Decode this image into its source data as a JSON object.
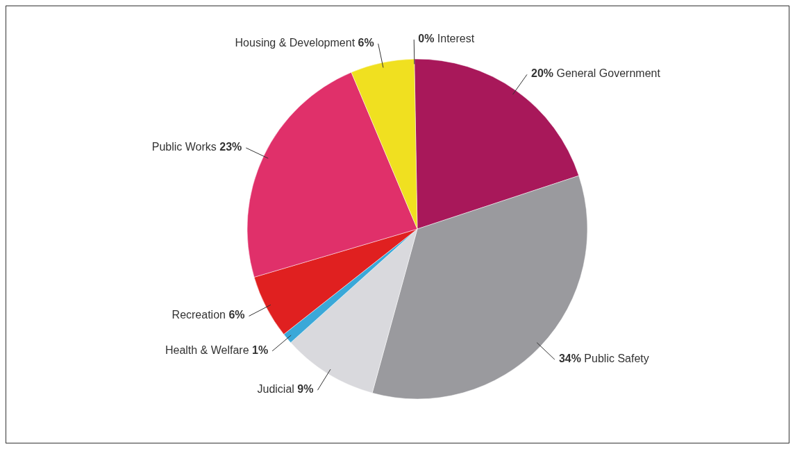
{
  "chart_data": {
    "type": "pie",
    "categories": [
      "General Government",
      "Public Safety",
      "Judicial",
      "Health & Welfare",
      "Recreation",
      "Public Works",
      "Housing & Development",
      "Interest"
    ],
    "values": [
      20,
      34,
      9,
      1,
      6,
      23,
      6,
      0
    ],
    "value_labels": [
      "20%",
      "34%",
      "9%",
      "1%",
      "6%",
      "23%",
      "6%",
      "0%"
    ],
    "colors": [
      "#a8185a",
      "#9a9a9e",
      "#d9d9dd",
      "#3aa8d8",
      "#e02020",
      "#e0306a",
      "#f0e020",
      "#1a3a8a"
    ]
  }
}
